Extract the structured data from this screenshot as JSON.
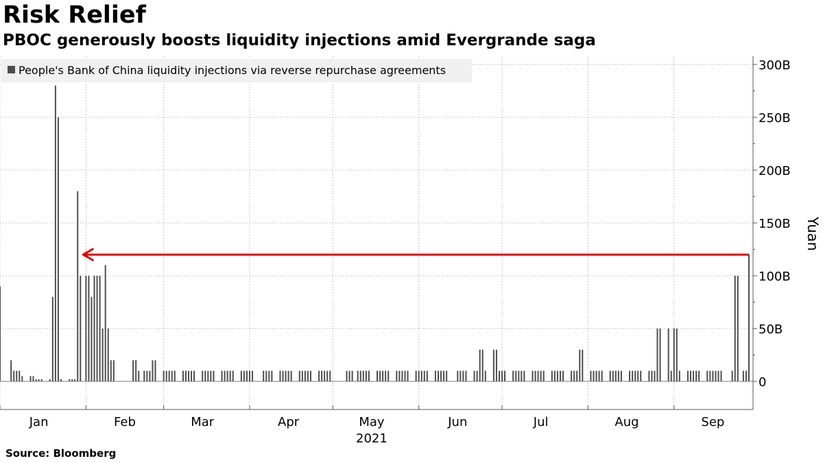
{
  "header": {
    "title": "Risk Relief",
    "subtitle": "PBOC generously boosts liquidity injections amid Evergrande saga"
  },
  "footer": {
    "source": "Source: Bloomberg"
  },
  "colors": {
    "bar": "#4d4d4d",
    "arrow": "#e00000",
    "grid": "#c8c8c8",
    "legend_bg": "#f0f0f0"
  },
  "chart_data": {
    "type": "bar",
    "ylabel": "Yuan",
    "ylim": [
      0,
      300
    ],
    "yticks": [
      0,
      50,
      100,
      150,
      200,
      250,
      300
    ],
    "ytick_labels": [
      "0",
      "50B",
      "100B",
      "150B",
      "200B",
      "250B",
      "300B"
    ],
    "y_axis_position": "right",
    "grid": true,
    "legend": {
      "position": "top-left",
      "entries": [
        "People's Bank of China liquidity injections via reverse repurchase agreements"
      ]
    },
    "xlim": [
      "2021-01-01",
      "2021-09-29"
    ],
    "x_ticks": [
      {
        "date": "2021-01-15",
        "label": "Jan"
      },
      {
        "date": "2021-02-15",
        "label": "Feb"
      },
      {
        "date": "2021-03-15",
        "label": "Mar"
      },
      {
        "date": "2021-04-15",
        "label": "Apr"
      },
      {
        "date": "2021-05-15",
        "label": "May"
      },
      {
        "date": "2021-06-15",
        "label": "Jun"
      },
      {
        "date": "2021-07-15",
        "label": "Jul"
      },
      {
        "date": "2021-08-15",
        "label": "Aug"
      },
      {
        "date": "2021-09-15",
        "label": "Sep"
      }
    ],
    "year_label": "2021",
    "annotation": {
      "type": "arrow",
      "from": {
        "date": "2021-09-28",
        "value": 120
      },
      "to": {
        "date": "2021-01-31",
        "value": 120
      }
    },
    "series": [
      {
        "dates": [
          "2021-01-01",
          "2021-01-05",
          "2021-01-06",
          "2021-01-07",
          "2021-01-08",
          "2021-01-09",
          "2021-01-12",
          "2021-01-13",
          "2021-01-14",
          "2021-01-15",
          "2021-01-16",
          "2021-01-19",
          "2021-01-20",
          "2021-01-21",
          "2021-01-22",
          "2021-01-23",
          "2021-01-26",
          "2021-01-27",
          "2021-01-28",
          "2021-01-29",
          "2021-01-30",
          "2021-02-01",
          "2021-02-02",
          "2021-02-03",
          "2021-02-04",
          "2021-02-05",
          "2021-02-06",
          "2021-02-07",
          "2021-02-08",
          "2021-02-09",
          "2021-02-10",
          "2021-02-11",
          "2021-02-18",
          "2021-02-19",
          "2021-02-20",
          "2021-02-22",
          "2021-02-23",
          "2021-02-24",
          "2021-02-25",
          "2021-02-26",
          "2021-03-01",
          "2021-03-02",
          "2021-03-03",
          "2021-03-04",
          "2021-03-05",
          "2021-03-08",
          "2021-03-09",
          "2021-03-10",
          "2021-03-11",
          "2021-03-12",
          "2021-03-15",
          "2021-03-16",
          "2021-03-17",
          "2021-03-18",
          "2021-03-19",
          "2021-03-22",
          "2021-03-23",
          "2021-03-24",
          "2021-03-25",
          "2021-03-26",
          "2021-03-29",
          "2021-03-30",
          "2021-03-31",
          "2021-04-01",
          "2021-04-02",
          "2021-04-06",
          "2021-04-07",
          "2021-04-08",
          "2021-04-09",
          "2021-04-12",
          "2021-04-13",
          "2021-04-14",
          "2021-04-15",
          "2021-04-16",
          "2021-04-19",
          "2021-04-20",
          "2021-04-21",
          "2021-04-22",
          "2021-04-23",
          "2021-04-26",
          "2021-04-27",
          "2021-04-28",
          "2021-04-29",
          "2021-04-30",
          "2021-05-06",
          "2021-05-07",
          "2021-05-08",
          "2021-05-10",
          "2021-05-11",
          "2021-05-12",
          "2021-05-13",
          "2021-05-14",
          "2021-05-17",
          "2021-05-18",
          "2021-05-19",
          "2021-05-20",
          "2021-05-21",
          "2021-05-24",
          "2021-05-25",
          "2021-05-26",
          "2021-05-27",
          "2021-05-28",
          "2021-05-31",
          "2021-06-01",
          "2021-06-02",
          "2021-06-03",
          "2021-06-04",
          "2021-06-07",
          "2021-06-08",
          "2021-06-09",
          "2021-06-10",
          "2021-06-11",
          "2021-06-15",
          "2021-06-16",
          "2021-06-17",
          "2021-06-18",
          "2021-06-21",
          "2021-06-22",
          "2021-06-23",
          "2021-06-24",
          "2021-06-25",
          "2021-06-28",
          "2021-06-29",
          "2021-06-30",
          "2021-07-01",
          "2021-07-02",
          "2021-07-05",
          "2021-07-06",
          "2021-07-07",
          "2021-07-08",
          "2021-07-09",
          "2021-07-12",
          "2021-07-13",
          "2021-07-14",
          "2021-07-15",
          "2021-07-16",
          "2021-07-19",
          "2021-07-20",
          "2021-07-21",
          "2021-07-22",
          "2021-07-23",
          "2021-07-26",
          "2021-07-27",
          "2021-07-28",
          "2021-07-29",
          "2021-07-30",
          "2021-08-02",
          "2021-08-03",
          "2021-08-04",
          "2021-08-05",
          "2021-08-06",
          "2021-08-09",
          "2021-08-10",
          "2021-08-11",
          "2021-08-12",
          "2021-08-13",
          "2021-08-16",
          "2021-08-17",
          "2021-08-18",
          "2021-08-19",
          "2021-08-20",
          "2021-08-23",
          "2021-08-24",
          "2021-08-25",
          "2021-08-26",
          "2021-08-27",
          "2021-08-30",
          "2021-08-31",
          "2021-09-01",
          "2021-09-02",
          "2021-09-03",
          "2021-09-06",
          "2021-09-07",
          "2021-09-08",
          "2021-09-09",
          "2021-09-10",
          "2021-09-13",
          "2021-09-14",
          "2021-09-15",
          "2021-09-16",
          "2021-09-17",
          "2021-09-18",
          "2021-09-22",
          "2021-09-23",
          "2021-09-24",
          "2021-09-26",
          "2021-09-27",
          "2021-09-28"
        ],
        "values": [
          90,
          20,
          10,
          10,
          10,
          5,
          5,
          5,
          2,
          2,
          2,
          2,
          80,
          280,
          250,
          2,
          2,
          2,
          2,
          180,
          100,
          100,
          100,
          80,
          100,
          100,
          100,
          50,
          110,
          50,
          20,
          20,
          20,
          20,
          10,
          10,
          10,
          10,
          20,
          20,
          10,
          10,
          10,
          10,
          10,
          10,
          10,
          10,
          10,
          10,
          10,
          10,
          10,
          10,
          10,
          10,
          10,
          10,
          10,
          10,
          10,
          10,
          10,
          10,
          10,
          10,
          10,
          10,
          10,
          10,
          10,
          10,
          10,
          10,
          10,
          10,
          10,
          10,
          10,
          10,
          10,
          10,
          10,
          10,
          10,
          10,
          10,
          10,
          10,
          10,
          10,
          10,
          10,
          10,
          10,
          10,
          10,
          10,
          10,
          10,
          10,
          10,
          10,
          10,
          10,
          10,
          10,
          10,
          10,
          10,
          10,
          10,
          10,
          10,
          10,
          10,
          10,
          10,
          30,
          30,
          10,
          30,
          30,
          10,
          10,
          10,
          10,
          10,
          10,
          10,
          10,
          10,
          10,
          10,
          10,
          10,
          10,
          10,
          10,
          10,
          10,
          10,
          10,
          10,
          30,
          30,
          10,
          10,
          10,
          10,
          10,
          10,
          10,
          10,
          10,
          10,
          10,
          10,
          10,
          10,
          10,
          10,
          10,
          10,
          50,
          50,
          50,
          10,
          50,
          50,
          10,
          10,
          10,
          10,
          10,
          10,
          10,
          10,
          10,
          10,
          10,
          10,
          10,
          100,
          100,
          10,
          10,
          120
        ]
      }
    ]
  }
}
